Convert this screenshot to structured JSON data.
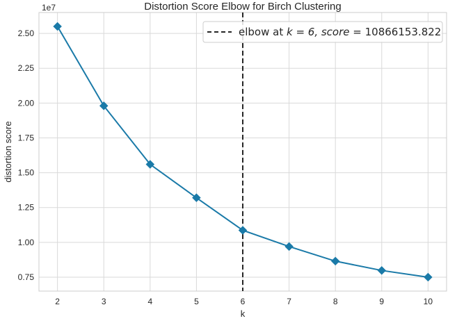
{
  "chart_data": {
    "type": "line",
    "title": "Distortion Score Elbow for Birch Clustering",
    "xlabel": "k",
    "ylabel": "distortion score",
    "y_offset_label": "1e7",
    "x": [
      2,
      3,
      4,
      5,
      6,
      7,
      8,
      9,
      10
    ],
    "series": [
      {
        "values": [
          25500000,
          19800000,
          15600000,
          13200000,
          10866153.822,
          9700000,
          8650000,
          7980000,
          7500000
        ],
        "color": "#1f77b4",
        "marker": "diamond"
      }
    ],
    "elbow": {
      "k": 6,
      "score": 10866153.822,
      "line_color": "#262626",
      "line_style": "dashed"
    },
    "legend": {
      "prefix": "elbow at ",
      "k_expr": "k = 6, score = ",
      "score_text": "10866153.822",
      "position": "top-right"
    },
    "xlim": [
      1.6,
      10.4
    ],
    "ylim": [
      6500000,
      26500000
    ],
    "x_ticks": [
      2,
      3,
      4,
      5,
      6,
      7,
      8,
      9,
      10
    ],
    "y_ticks": [
      7500000,
      10000000,
      12500000,
      15000000,
      17500000,
      20000000,
      22500000,
      25000000
    ],
    "y_tick_labels": [
      "0.75",
      "1.00",
      "1.25",
      "1.50",
      "1.75",
      "2.00",
      "2.25",
      "2.50"
    ],
    "grid": true,
    "colors": {
      "line": "#1a7aa8",
      "grid": "#d9d9d9",
      "frame": "#cccccc"
    }
  }
}
